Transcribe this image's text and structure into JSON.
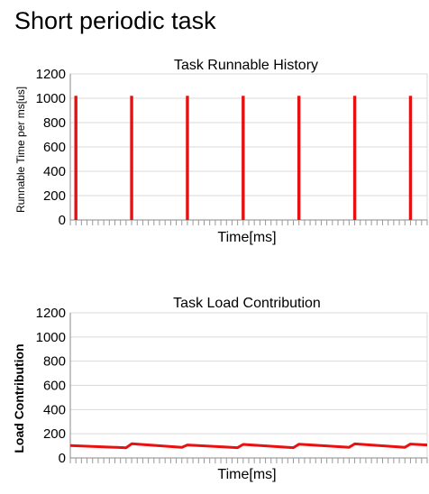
{
  "page": {
    "title": "Short periodic task"
  },
  "chart_data": [
    {
      "type": "bar",
      "title": "Task Runnable History",
      "xlabel": "Time[ms]",
      "ylabel": "Runnable Time per ms[us]",
      "ylim": [
        0,
        1200
      ],
      "yticks": [
        "0",
        "200",
        "400",
        "600",
        "800",
        "1000",
        "1200"
      ],
      "grid": true,
      "x_count": 64,
      "series": [
        {
          "color": "#e81010",
          "spikes": [
            {
              "x": 1,
              "value": 1020
            },
            {
              "x": 11,
              "value": 1020
            },
            {
              "x": 21,
              "value": 1020
            },
            {
              "x": 31,
              "value": 1020
            },
            {
              "x": 41,
              "value": 1020
            },
            {
              "x": 51,
              "value": 1020
            },
            {
              "x": 61,
              "value": 1020
            }
          ]
        }
      ]
    },
    {
      "type": "line",
      "title": "Task Load Contribution",
      "xlabel": "Time[ms]",
      "ylabel": "Load Contribution",
      "ylim": [
        0,
        1200
      ],
      "yticks": [
        "0",
        "200",
        "400",
        "600",
        "800",
        "1000",
        "1200"
      ],
      "grid": true,
      "x_count": 64,
      "series": [
        {
          "color": "#e81010",
          "points": [
            [
              0,
              103
            ],
            [
              10,
              84
            ],
            [
              11,
              117
            ],
            [
              20,
              87
            ],
            [
              21,
              107
            ],
            [
              30,
              85
            ],
            [
              31,
              112
            ],
            [
              40,
              85
            ],
            [
              41,
              113
            ],
            [
              50,
              88
            ],
            [
              51,
              116
            ],
            [
              60,
              88
            ],
            [
              61,
              115
            ],
            [
              64,
              107
            ]
          ]
        }
      ]
    }
  ]
}
